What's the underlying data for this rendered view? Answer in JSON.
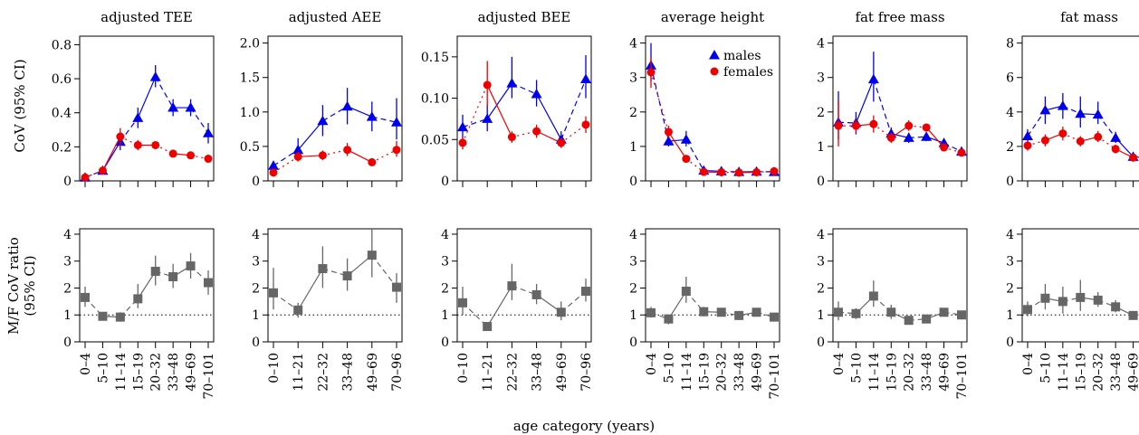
{
  "figure": {
    "xlabel": "age category (years)",
    "row_labels": [
      "CoV (95% CI)",
      "M/F CoV ratio",
      "(95% CI)"
    ]
  },
  "legend": {
    "males": "males",
    "females": "females"
  },
  "colors": {
    "males": "#0000ee",
    "females": "#ee0000",
    "ratio": "#666666"
  },
  "chart_data": [
    {
      "type": "line",
      "title": "adjusted TEE",
      "categories": [
        "0–4",
        "5–10",
        "11–14",
        "15–19",
        "20–32",
        "33–48",
        "49–69",
        "70–101"
      ],
      "ylim": [
        0,
        0.85
      ],
      "yticks": [
        "0",
        "0.2",
        "0.4",
        "0.6",
        "0.8"
      ],
      "ytick_values": [
        0,
        0.2,
        0.4,
        0.6,
        0.8
      ],
      "series": [
        {
          "name": "males",
          "values": [
            0.02,
            0.06,
            0.23,
            0.37,
            0.61,
            0.43,
            0.43,
            0.28
          ],
          "ci_low": [
            0.01,
            0.05,
            0.18,
            0.31,
            0.55,
            0.38,
            0.38,
            0.22
          ],
          "ci_high": [
            0.03,
            0.07,
            0.28,
            0.43,
            0.68,
            0.48,
            0.48,
            0.34
          ]
        },
        {
          "name": "females",
          "values": [
            0.02,
            0.06,
            0.26,
            0.21,
            0.21,
            0.16,
            0.15,
            0.13
          ],
          "ci_low": [
            0.01,
            0.05,
            0.2,
            0.18,
            0.19,
            0.15,
            0.14,
            0.12
          ],
          "ci_high": [
            0.03,
            0.07,
            0.31,
            0.24,
            0.23,
            0.17,
            0.16,
            0.14
          ]
        }
      ]
    },
    {
      "type": "line",
      "title": "adjusted AEE",
      "categories": [
        "0–10",
        "11–21",
        "22–32",
        "33–48",
        "49–69",
        "70–96"
      ],
      "ylim": [
        0,
        2.1
      ],
      "yticks": [
        "0",
        "0.5",
        "1.0",
        "1.5",
        "2.0"
      ],
      "ytick_values": [
        0,
        0.5,
        1.0,
        1.5,
        2.0
      ],
      "series": [
        {
          "name": "males",
          "values": [
            0.22,
            0.45,
            0.87,
            1.08,
            0.93,
            0.85
          ],
          "ci_low": [
            0.15,
            0.32,
            0.65,
            0.82,
            0.72,
            0.6
          ],
          "ci_high": [
            0.29,
            0.62,
            1.1,
            1.35,
            1.15,
            1.2
          ]
        },
        {
          "name": "females",
          "values": [
            0.12,
            0.35,
            0.37,
            0.45,
            0.27,
            0.45
          ],
          "ci_low": [
            0.08,
            0.28,
            0.3,
            0.36,
            0.22,
            0.35
          ],
          "ci_high": [
            0.16,
            0.42,
            0.44,
            0.55,
            0.32,
            0.58
          ]
        }
      ]
    },
    {
      "type": "line",
      "title": "adjusted BEE",
      "categories": [
        "0–10",
        "11–21",
        "22–32",
        "33–48",
        "49–69",
        "70–96"
      ],
      "ylim": [
        0,
        0.175
      ],
      "yticks": [
        "0",
        "0.05",
        "0.10",
        "0.15"
      ],
      "ytick_values": [
        0,
        0.05,
        0.1,
        0.15
      ],
      "series": [
        {
          "name": "males",
          "values": [
            0.065,
            0.075,
            0.118,
            0.105,
            0.05,
            0.123
          ],
          "ci_low": [
            0.05,
            0.06,
            0.1,
            0.09,
            0.04,
            0.1
          ],
          "ci_high": [
            0.08,
            0.092,
            0.15,
            0.122,
            0.06,
            0.152
          ]
        },
        {
          "name": "females",
          "values": [
            0.046,
            0.116,
            0.053,
            0.06,
            0.046,
            0.068
          ],
          "ci_low": [
            0.038,
            0.09,
            0.046,
            0.052,
            0.04,
            0.058
          ],
          "ci_high": [
            0.054,
            0.145,
            0.06,
            0.068,
            0.052,
            0.078
          ]
        }
      ]
    },
    {
      "type": "line",
      "title": "average height",
      "legend": "top-right",
      "categories": [
        "0–4",
        "5–10",
        "11–14",
        "15–19",
        "20–32",
        "33–48",
        "49–69",
        "70–101"
      ],
      "ylim": [
        0,
        4.2
      ],
      "yticks": [
        "0",
        "1",
        "2",
        "3",
        "4"
      ],
      "ytick_values": [
        0,
        1,
        2,
        3,
        4
      ],
      "series": [
        {
          "name": "males",
          "values": [
            3.35,
            1.15,
            1.2,
            0.3,
            0.28,
            0.26,
            0.27,
            0.26
          ],
          "ci_low": [
            2.9,
            1.0,
            1.0,
            0.25,
            0.24,
            0.22,
            0.23,
            0.22
          ],
          "ci_high": [
            4.0,
            1.3,
            1.45,
            0.35,
            0.32,
            0.3,
            0.31,
            0.3
          ]
        },
        {
          "name": "females",
          "values": [
            3.15,
            1.42,
            0.64,
            0.26,
            0.25,
            0.24,
            0.25,
            0.28
          ],
          "ci_low": [
            2.7,
            1.25,
            0.57,
            0.22,
            0.22,
            0.21,
            0.22,
            0.24
          ],
          "ci_high": [
            3.6,
            1.6,
            0.71,
            0.3,
            0.28,
            0.27,
            0.28,
            0.32
          ]
        }
      ]
    },
    {
      "type": "line",
      "title": "fat free mass",
      "categories": [
        "0–4",
        "5–10",
        "11–14",
        "15–19",
        "20–32",
        "33–48",
        "49–69",
        "70–101"
      ],
      "ylim": [
        0,
        4.2
      ],
      "yticks": [
        "0",
        "1",
        "2",
        "3",
        "4"
      ],
      "ytick_values": [
        0,
        1,
        2,
        3,
        4
      ],
      "series": [
        {
          "name": "males",
          "values": [
            1.7,
            1.68,
            2.95,
            1.37,
            1.25,
            1.28,
            1.1,
            0.85
          ],
          "ci_low": [
            1.2,
            1.35,
            2.3,
            1.18,
            1.1,
            1.15,
            0.98,
            0.72
          ],
          "ci_high": [
            2.6,
            2.0,
            3.75,
            1.55,
            1.4,
            1.4,
            1.22,
            0.98
          ]
        },
        {
          "name": "females",
          "values": [
            1.6,
            1.6,
            1.65,
            1.25,
            1.6,
            1.55,
            0.97,
            0.82
          ],
          "ci_low": [
            1.0,
            1.4,
            1.4,
            1.1,
            1.45,
            1.45,
            0.87,
            0.72
          ],
          "ci_high": [
            2.35,
            1.78,
            1.9,
            1.4,
            1.76,
            1.66,
            1.08,
            0.92
          ]
        }
      ]
    },
    {
      "type": "line",
      "title": "fat mass",
      "categories": [
        "0–4",
        "5–10",
        "11–14",
        "15–19",
        "20–32",
        "33–48",
        "49–69",
        "70–101"
      ],
      "ylim": [
        0,
        8.4
      ],
      "yticks": [
        "0",
        "2",
        "4",
        "6",
        "8"
      ],
      "ytick_values": [
        0,
        2,
        4,
        6,
        8
      ],
      "series": [
        {
          "name": "males",
          "values": [
            2.6,
            4.1,
            4.35,
            3.9,
            3.85,
            2.5,
            1.4,
            1.35
          ],
          "ci_low": [
            2.2,
            3.3,
            3.6,
            3.1,
            3.3,
            2.2,
            1.2,
            1.1
          ],
          "ci_high": [
            3.0,
            4.9,
            5.1,
            4.9,
            4.6,
            2.85,
            1.65,
            1.6
          ]
        },
        {
          "name": "females",
          "values": [
            2.05,
            2.35,
            2.75,
            2.3,
            2.55,
            1.85,
            1.35,
            1.3
          ],
          "ci_low": [
            1.75,
            2.0,
            2.35,
            2.0,
            2.25,
            1.6,
            1.15,
            1.1
          ],
          "ci_high": [
            2.35,
            2.7,
            3.15,
            2.6,
            2.9,
            2.1,
            1.55,
            1.5
          ]
        }
      ]
    },
    {
      "type": "line",
      "title": "",
      "ylim": [
        0,
        4.2
      ],
      "yticks": [
        "0",
        "1",
        "2",
        "3",
        "4"
      ],
      "ytick_values": [
        0,
        1,
        2,
        3,
        4
      ],
      "reference_line": 1,
      "categories": [
        "0–4",
        "5–10",
        "11–14",
        "15–19",
        "20–32",
        "33–48",
        "49–69",
        "70–101"
      ],
      "series": [
        {
          "name": "M/F CoV ratio",
          "values": [
            1.65,
            0.95,
            0.92,
            1.6,
            2.62,
            2.42,
            2.82,
            2.2
          ],
          "ci_low": [
            1.3,
            0.8,
            0.75,
            1.25,
            2.1,
            2.0,
            2.35,
            1.75
          ],
          "ci_high": [
            2.05,
            1.1,
            1.1,
            2.15,
            3.2,
            2.9,
            3.3,
            2.65
          ]
        }
      ]
    },
    {
      "type": "line",
      "title": "",
      "ylim": [
        0,
        4.2
      ],
      "yticks": [
        "0",
        "1",
        "2",
        "3",
        "4"
      ],
      "ytick_values": [
        0,
        1,
        2,
        3,
        4
      ],
      "reference_line": 1,
      "categories": [
        "0–10",
        "11–21",
        "22–32",
        "33–48",
        "49–69",
        "70–96"
      ],
      "series": [
        {
          "name": "M/F CoV ratio",
          "values": [
            1.82,
            1.18,
            2.72,
            2.45,
            3.22,
            2.03
          ],
          "ci_low": [
            1.2,
            0.9,
            2.0,
            1.9,
            2.4,
            1.45
          ],
          "ci_high": [
            2.75,
            1.45,
            3.55,
            3.1,
            4.2,
            2.55
          ]
        }
      ]
    },
    {
      "type": "line",
      "title": "",
      "ylim": [
        0,
        4.2
      ],
      "yticks": [
        "0",
        "1",
        "2",
        "3",
        "4"
      ],
      "ytick_values": [
        0,
        1,
        2,
        3,
        4
      ],
      "reference_line": 1,
      "categories": [
        "0–10",
        "11–21",
        "22–32",
        "33–48",
        "49–69",
        "70–96"
      ],
      "series": [
        {
          "name": "M/F CoV ratio",
          "values": [
            1.45,
            0.57,
            2.08,
            1.75,
            1.1,
            1.88
          ],
          "ci_low": [
            1.0,
            0.45,
            1.55,
            1.4,
            0.8,
            1.5
          ],
          "ci_high": [
            2.05,
            0.7,
            2.9,
            2.15,
            1.5,
            2.35
          ]
        }
      ]
    },
    {
      "type": "line",
      "title": "",
      "ylim": [
        0,
        4.2
      ],
      "yticks": [
        "0",
        "1",
        "2",
        "3",
        "4"
      ],
      "ytick_values": [
        0,
        1,
        2,
        3,
        4
      ],
      "reference_line": 1,
      "categories": [
        "0–4",
        "5–10",
        "11–14",
        "15–19",
        "20–32",
        "33–48",
        "49–69",
        "70–101"
      ],
      "series": [
        {
          "name": "M/F CoV ratio",
          "values": [
            1.08,
            0.85,
            1.88,
            1.12,
            1.1,
            0.98,
            1.1,
            0.92
          ],
          "ci_low": [
            0.9,
            0.65,
            1.45,
            0.95,
            0.95,
            0.9,
            0.98,
            0.82
          ],
          "ci_high": [
            1.3,
            1.02,
            2.42,
            1.3,
            1.25,
            1.08,
            1.22,
            1.02
          ]
        }
      ]
    },
    {
      "type": "line",
      "title": "",
      "ylim": [
        0,
        4.2
      ],
      "yticks": [
        "0",
        "1",
        "2",
        "3",
        "4"
      ],
      "ytick_values": [
        0,
        1,
        2,
        3,
        4
      ],
      "reference_line": 1,
      "categories": [
        "0–4",
        "5–10",
        "11–14",
        "15–19",
        "20–32",
        "33–48",
        "49–69",
        "70–101"
      ],
      "series": [
        {
          "name": "M/F CoV ratio",
          "values": [
            1.1,
            1.05,
            1.7,
            1.1,
            0.8,
            0.85,
            1.1,
            1.0
          ],
          "ci_low": [
            0.8,
            0.85,
            1.3,
            0.85,
            0.72,
            0.75,
            0.95,
            0.85
          ],
          "ci_high": [
            1.5,
            1.25,
            2.28,
            1.38,
            0.88,
            0.95,
            1.25,
            1.15
          ]
        }
      ]
    },
    {
      "type": "line",
      "title": "",
      "ylim": [
        0,
        4.2
      ],
      "yticks": [
        "0",
        "1",
        "2",
        "3",
        "4"
      ],
      "ytick_values": [
        0,
        1,
        2,
        3,
        4
      ],
      "reference_line": 1,
      "categories": [
        "0–4",
        "5–10",
        "11–14",
        "15–19",
        "20–32",
        "33–48",
        "49–69",
        "70–101"
      ],
      "series": [
        {
          "name": "M/F CoV ratio",
          "values": [
            1.2,
            1.62,
            1.5,
            1.65,
            1.55,
            1.3,
            0.98,
            1.05
          ],
          "ci_low": [
            0.95,
            1.2,
            1.05,
            1.15,
            1.3,
            1.1,
            0.88,
            0.9
          ],
          "ci_high": [
            1.5,
            2.15,
            2.05,
            2.3,
            1.85,
            1.55,
            1.1,
            1.25
          ]
        }
      ]
    }
  ]
}
